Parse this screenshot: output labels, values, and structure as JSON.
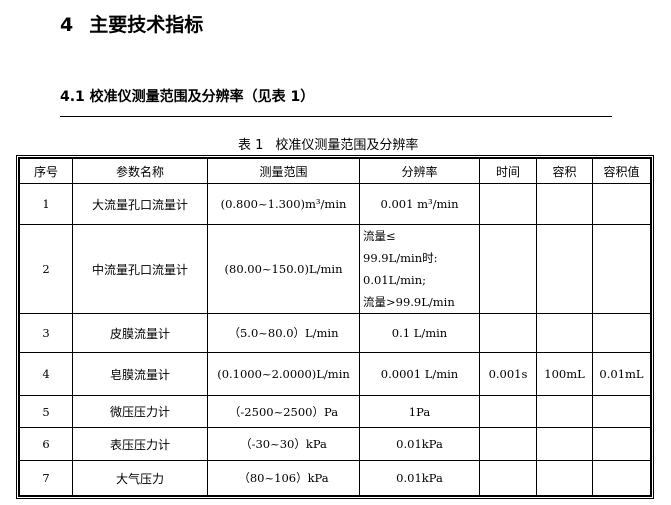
{
  "heading": {
    "number": "4",
    "title": "主要技术指标"
  },
  "subheading": "4.1 校准仪测量范围及分辨率（见表 1）",
  "caption": {
    "label": "表 1",
    "title": "校准仪测量范围及分辨率"
  },
  "table": {
    "headers": [
      "序号",
      "参数名称",
      "测量范围",
      "分辨率",
      "时间",
      "容积",
      "容积值"
    ],
    "rows": [
      {
        "no": "1",
        "name": "大流量孔口流量计",
        "range": "(0.800~1.300)m³/min",
        "resolution": "0.001 m³/min",
        "time": "",
        "volume": "",
        "volume_value": ""
      },
      {
        "no": "2",
        "name": "中流量孔口流量计",
        "range": "(80.00~150.0)L/min",
        "resolution_lines": [
          "流量≤",
          "99.9L/min时:",
          "0.01L/min;",
          "流量>99.9L/min"
        ],
        "time": "",
        "volume": "",
        "volume_value": ""
      },
      {
        "no": "3",
        "name": "皮膜流量计",
        "range": "（5.0~80.0）L/min",
        "resolution": "0.1 L/min",
        "time": "",
        "volume": "",
        "volume_value": ""
      },
      {
        "no": "4",
        "name": "皂膜流量计",
        "range": "(0.1000~2.0000)L/min",
        "resolution": "0.0001 L/min",
        "time": "0.001s",
        "volume": "100mL",
        "volume_value": "0.01mL"
      },
      {
        "no": "5",
        "name": "微压压力计",
        "range": "（-2500~2500）Pa",
        "resolution": "1Pa",
        "time": "",
        "volume": "",
        "volume_value": ""
      },
      {
        "no": "6",
        "name": "表压压力计",
        "range": "（-30~30）kPa",
        "resolution": "0.01kPa",
        "time": "",
        "volume": "",
        "volume_value": ""
      },
      {
        "no": "7",
        "name": "大气压力",
        "range": "（80~106）kPa",
        "resolution": "0.01kPa",
        "time": "",
        "volume": "",
        "volume_value": ""
      }
    ]
  }
}
